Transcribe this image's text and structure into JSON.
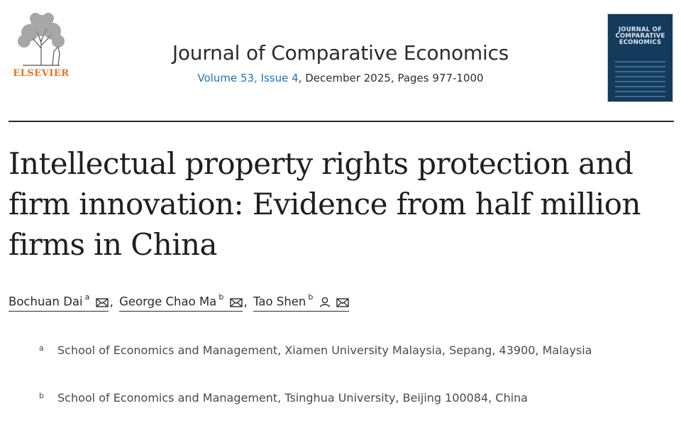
{
  "publisher": {
    "name": "ELSEVIER",
    "accent_color": "#e9711c",
    "logo_icon": "elsevier-tree-icon"
  },
  "journal": {
    "title": "Journal of Comparative Economics",
    "volume_issue": "Volume 53, Issue 4",
    "details": ", December 2025, Pages 977-1000",
    "cover_text": "JOURNAL OF COMPARATIVE ECONOMICS",
    "link_color": "#1f73b7"
  },
  "article": {
    "title": "Intellectual property rights protection and firm innovation: Evidence from half million firms in China",
    "authors": [
      {
        "name": "Bochuan Dai",
        "sup": "a",
        "icons": [
          "mail-icon"
        ]
      },
      {
        "name": "George Chao Ma",
        "sup": "b",
        "icons": [
          "mail-icon"
        ]
      },
      {
        "name": "Tao Shen",
        "sup": "b",
        "icons": [
          "person-icon",
          "mail-icon"
        ]
      }
    ],
    "separator": ",",
    "affiliations": [
      {
        "mark": "a",
        "text": "School of Economics and Management, Xiamen University Malaysia, Sepang, 43900, Malaysia"
      },
      {
        "mark": "b",
        "text": "School of Economics and Management, Tsinghua University, Beijing 100084, China"
      }
    ]
  }
}
